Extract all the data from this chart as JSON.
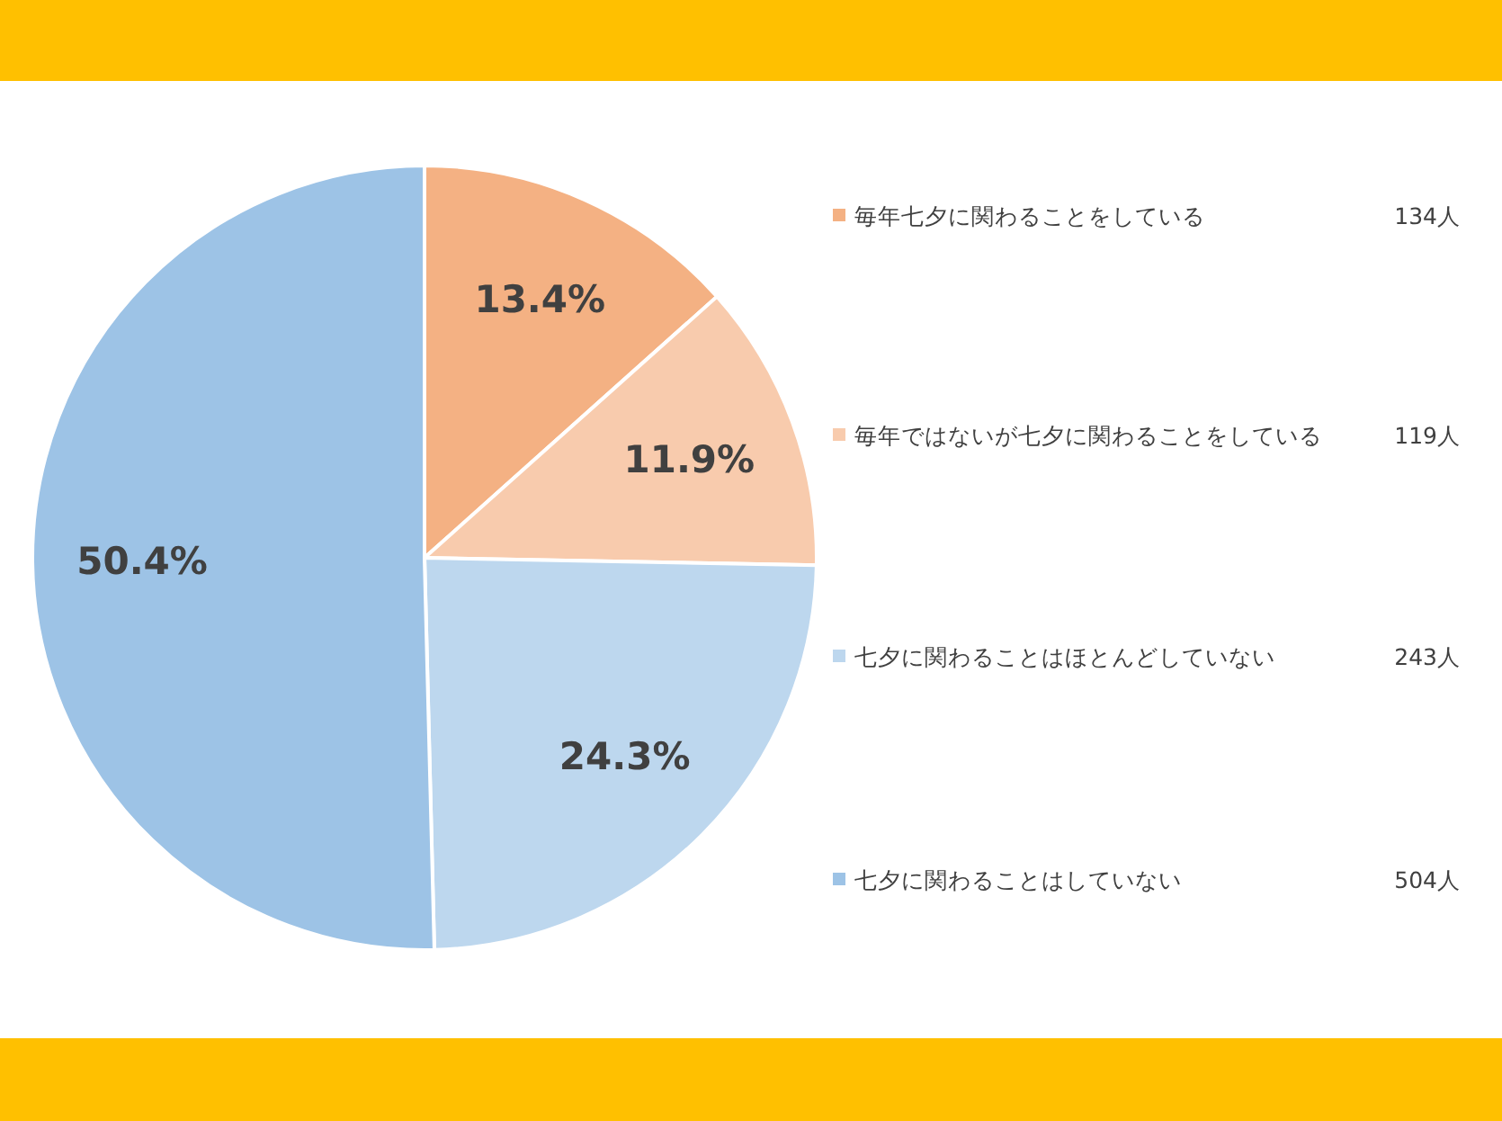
{
  "chart_data": {
    "type": "pie",
    "categories": [
      "毎年七夕に関わることをしている",
      "毎年ではないが七夕に関わることをしている",
      "七夕に関わることはほとんどしていない",
      "七夕に関わることはしていない"
    ],
    "values": [
      13.4,
      11.9,
      24.3,
      50.4
    ],
    "colors": [
      "#f4b183",
      "#f8cbad",
      "#bdd7ee",
      "#9dc3e6"
    ],
    "value_labels": [
      "13.4%",
      "11.9%",
      "24.3%",
      "50.4%"
    ],
    "annotations": [
      "134人",
      "119人",
      "243人",
      "504人"
    ],
    "legend": "right"
  }
}
